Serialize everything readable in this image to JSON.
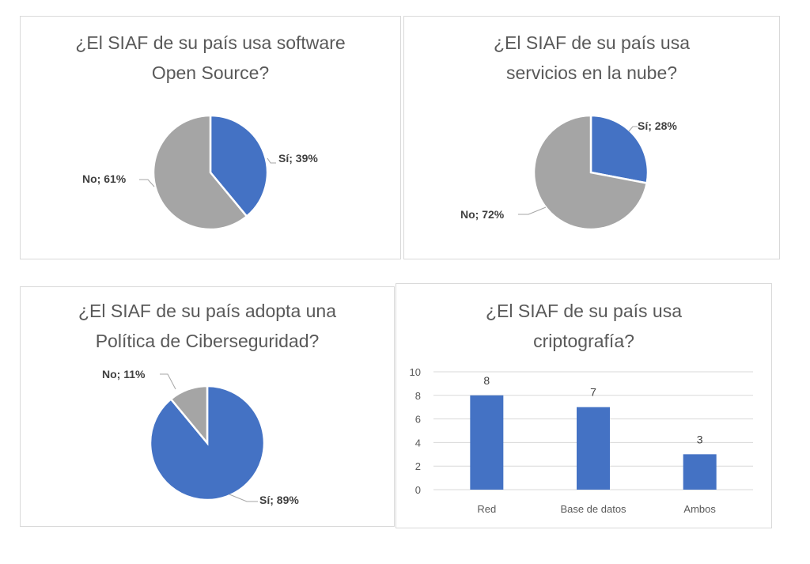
{
  "colors": {
    "si": "#4472C4",
    "no": "#A5A5A5",
    "bar": "#4472C4",
    "grid": "#d9d9d9",
    "text": "#595959"
  },
  "chart_data": [
    {
      "type": "pie",
      "title_lines": [
        "¿El SIAF de su país usa software",
        "Open Source?"
      ],
      "slices": [
        {
          "label": "Sí; 39%",
          "name": "Sí",
          "value": 39
        },
        {
          "label": "No; 61%",
          "name": "No",
          "value": 61
        }
      ]
    },
    {
      "type": "pie",
      "title_lines": [
        "¿El SIAF de su país usa",
        "servicios en la nube?"
      ],
      "slices": [
        {
          "label": "Sí; 28%",
          "name": "Sí",
          "value": 28
        },
        {
          "label": "No; 72%",
          "name": "No",
          "value": 72
        }
      ]
    },
    {
      "type": "pie",
      "title_lines": [
        "¿El SIAF de su país adopta una",
        "Política de Ciberseguridad?"
      ],
      "slices": [
        {
          "label": "Sí; 89%",
          "name": "Sí",
          "value": 89
        },
        {
          "label": "No; 11%",
          "name": "No",
          "value": 11
        }
      ]
    },
    {
      "type": "bar",
      "title_lines": [
        "¿El SIAF de su país usa",
        "criptografía?"
      ],
      "categories": [
        "Red",
        "Base de datos",
        "Ambos"
      ],
      "values": [
        8,
        7,
        3
      ],
      "data_labels": [
        "8",
        "7",
        "3"
      ],
      "yticks": [
        "0",
        "2",
        "4",
        "6",
        "8",
        "10"
      ],
      "ylim": [
        0,
        10
      ],
      "grid": true
    }
  ]
}
